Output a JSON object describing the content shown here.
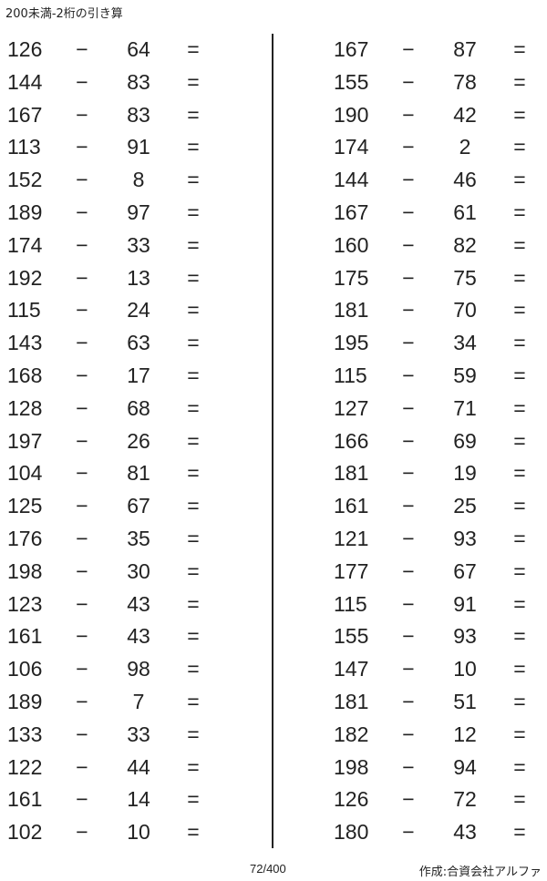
{
  "title": "200未満-2桁の引き算",
  "operator": "−",
  "equals": "=",
  "left_problems": [
    [
      "126",
      "64"
    ],
    [
      "144",
      "83"
    ],
    [
      "167",
      "83"
    ],
    [
      "113",
      "91"
    ],
    [
      "152",
      "8"
    ],
    [
      "189",
      "97"
    ],
    [
      "174",
      "33"
    ],
    [
      "192",
      "13"
    ],
    [
      "115",
      "24"
    ],
    [
      "143",
      "63"
    ],
    [
      "168",
      "17"
    ],
    [
      "128",
      "68"
    ],
    [
      "197",
      "26"
    ],
    [
      "104",
      "81"
    ],
    [
      "125",
      "67"
    ],
    [
      "176",
      "35"
    ],
    [
      "198",
      "30"
    ],
    [
      "123",
      "43"
    ],
    [
      "161",
      "43"
    ],
    [
      "106",
      "98"
    ],
    [
      "189",
      "7"
    ],
    [
      "133",
      "33"
    ],
    [
      "122",
      "44"
    ],
    [
      "161",
      "14"
    ],
    [
      "102",
      "10"
    ]
  ],
  "right_problems": [
    [
      "167",
      "87"
    ],
    [
      "155",
      "78"
    ],
    [
      "190",
      "42"
    ],
    [
      "174",
      "2"
    ],
    [
      "144",
      "46"
    ],
    [
      "167",
      "61"
    ],
    [
      "160",
      "82"
    ],
    [
      "175",
      "75"
    ],
    [
      "181",
      "70"
    ],
    [
      "195",
      "34"
    ],
    [
      "115",
      "59"
    ],
    [
      "127",
      "71"
    ],
    [
      "166",
      "69"
    ],
    [
      "181",
      "19"
    ],
    [
      "161",
      "25"
    ],
    [
      "121",
      "93"
    ],
    [
      "177",
      "67"
    ],
    [
      "115",
      "91"
    ],
    [
      "155",
      "93"
    ],
    [
      "147",
      "10"
    ],
    [
      "181",
      "51"
    ],
    [
      "182",
      "12"
    ],
    [
      "198",
      "94"
    ],
    [
      "126",
      "72"
    ],
    [
      "180",
      "43"
    ]
  ],
  "footer": {
    "page": "72/400",
    "credit": "作成:合資会社アルファ"
  }
}
